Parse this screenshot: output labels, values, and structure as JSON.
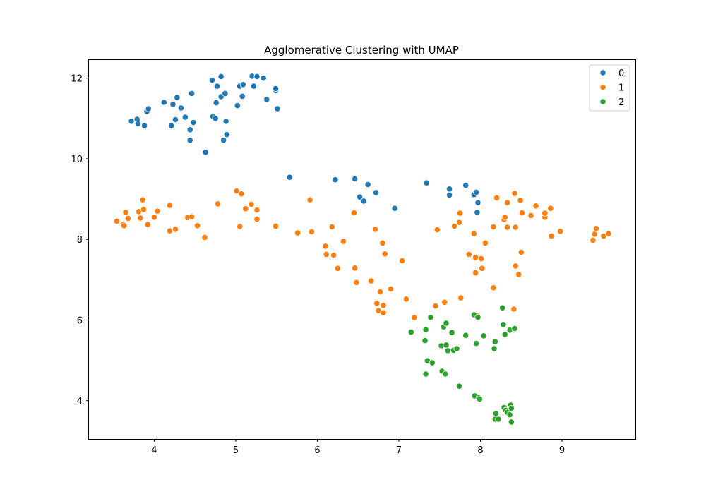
{
  "chart_data": {
    "type": "scatter",
    "title": "Agglomerative Clustering with UMAP",
    "xlabel": "",
    "ylabel": "",
    "xlim": [
      3.2,
      9.9
    ],
    "ylim": [
      3.05,
      12.45
    ],
    "xticks": [
      4,
      5,
      6,
      7,
      8,
      9
    ],
    "yticks": [
      4,
      6,
      8,
      10,
      12
    ],
    "grid": false,
    "legend_position": "top-right",
    "series": [
      {
        "name": "0",
        "color": "#1f77b4",
        "points": [
          [
            3.72,
            10.93
          ],
          [
            3.79,
            10.98
          ],
          [
            3.8,
            10.87
          ],
          [
            3.88,
            10.82
          ],
          [
            3.91,
            11.17
          ],
          [
            3.93,
            11.24
          ],
          [
            4.12,
            11.4
          ],
          [
            4.21,
            10.82
          ],
          [
            4.23,
            11.35
          ],
          [
            4.26,
            10.97
          ],
          [
            4.28,
            11.52
          ],
          [
            4.33,
            11.26
          ],
          [
            4.38,
            11.03
          ],
          [
            4.44,
            10.46
          ],
          [
            4.44,
            10.72
          ],
          [
            4.46,
            11.62
          ],
          [
            4.48,
            10.9
          ],
          [
            4.63,
            10.16
          ],
          [
            4.71,
            11.95
          ],
          [
            4.72,
            11.05
          ],
          [
            4.75,
            11.0
          ],
          [
            4.76,
            11.39
          ],
          [
            4.77,
            11.8
          ],
          [
            4.82,
            11.54
          ],
          [
            4.82,
            12.04
          ],
          [
            4.85,
            10.46
          ],
          [
            4.87,
            11.62
          ],
          [
            4.88,
            10.93
          ],
          [
            4.89,
            10.6
          ],
          [
            5.02,
            11.32
          ],
          [
            5.05,
            11.8
          ],
          [
            5.08,
            11.55
          ],
          [
            5.09,
            11.84
          ],
          [
            5.2,
            12.05
          ],
          [
            5.22,
            11.8
          ],
          [
            5.26,
            12.04
          ],
          [
            5.34,
            12.0
          ],
          [
            5.38,
            11.47
          ],
          [
            5.49,
            11.69
          ],
          [
            5.49,
            11.74
          ],
          [
            5.51,
            11.24
          ],
          [
            5.66,
            9.54
          ],
          [
            6.22,
            9.48
          ],
          [
            6.46,
            9.5
          ],
          [
            6.52,
            9.05
          ],
          [
            6.57,
            8.95
          ],
          [
            6.62,
            9.36
          ],
          [
            6.72,
            9.16
          ],
          [
            6.95,
            8.77
          ],
          [
            7.34,
            9.4
          ],
          [
            7.62,
            9.1
          ],
          [
            7.62,
            9.25
          ],
          [
            7.82,
            9.34
          ],
          [
            7.92,
            9.11
          ],
          [
            7.95,
            9.17
          ],
          [
            7.96,
            8.67
          ],
          [
            7.97,
            8.91
          ]
        ]
      },
      {
        "name": "1",
        "color": "#ff7f0e",
        "points": [
          [
            3.54,
            8.45
          ],
          [
            3.62,
            8.37
          ],
          [
            3.63,
            8.34
          ],
          [
            3.65,
            8.67
          ],
          [
            3.68,
            8.52
          ],
          [
            3.81,
            8.69
          ],
          [
            3.83,
            8.53
          ],
          [
            3.86,
            8.98
          ],
          [
            3.87,
            8.74
          ],
          [
            3.92,
            8.37
          ],
          [
            4.0,
            8.55
          ],
          [
            4.04,
            8.7
          ],
          [
            4.19,
            8.84
          ],
          [
            4.19,
            8.21
          ],
          [
            4.26,
            8.25
          ],
          [
            4.41,
            8.54
          ],
          [
            4.46,
            8.56
          ],
          [
            4.53,
            8.34
          ],
          [
            4.62,
            8.05
          ],
          [
            4.78,
            8.88
          ],
          [
            5.01,
            9.2
          ],
          [
            5.05,
            8.32
          ],
          [
            5.07,
            9.13
          ],
          [
            5.12,
            8.76
          ],
          [
            5.19,
            8.87
          ],
          [
            5.26,
            8.73
          ],
          [
            5.26,
            8.5
          ],
          [
            5.49,
            8.33
          ],
          [
            5.76,
            8.16
          ],
          [
            5.91,
            8.98
          ],
          [
            5.93,
            8.19
          ],
          [
            6.1,
            7.83
          ],
          [
            6.11,
            7.63
          ],
          [
            6.18,
            8.31
          ],
          [
            6.2,
            7.61
          ],
          [
            6.25,
            7.28
          ],
          [
            6.32,
            7.95
          ],
          [
            6.45,
            8.66
          ],
          [
            6.46,
            7.29
          ],
          [
            6.48,
            6.93
          ],
          [
            6.66,
            6.97
          ],
          [
            6.71,
            8.25
          ],
          [
            6.73,
            6.41
          ],
          [
            6.75,
            6.23
          ],
          [
            6.77,
            6.7
          ],
          [
            6.8,
            7.91
          ],
          [
            6.81,
            6.36
          ],
          [
            6.81,
            6.18
          ],
          [
            6.83,
            7.64
          ],
          [
            6.9,
            6.77
          ],
          [
            7.04,
            7.47
          ],
          [
            7.09,
            6.52
          ],
          [
            7.19,
            6.06
          ],
          [
            7.45,
            6.35
          ],
          [
            7.47,
            8.24
          ],
          [
            7.56,
            6.44
          ],
          [
            7.68,
            8.33
          ],
          [
            7.74,
            8.42
          ],
          [
            7.75,
            8.65
          ],
          [
            7.76,
            6.55
          ],
          [
            7.86,
            7.63
          ],
          [
            7.92,
            8.14
          ],
          [
            7.94,
            7.55
          ],
          [
            7.94,
            7.17
          ],
          [
            7.96,
            6.11
          ],
          [
            8.01,
            7.52
          ],
          [
            8.02,
            7.28
          ],
          [
            8.06,
            7.91
          ],
          [
            8.16,
            8.31
          ],
          [
            8.16,
            6.8
          ],
          [
            8.2,
            9.03
          ],
          [
            8.29,
            8.49
          ],
          [
            8.3,
            8.55
          ],
          [
            8.33,
            8.91
          ],
          [
            8.33,
            8.3
          ],
          [
            8.41,
            6.27
          ],
          [
            8.42,
            9.14
          ],
          [
            8.43,
            8.3
          ],
          [
            8.43,
            7.34
          ],
          [
            8.47,
            7.13
          ],
          [
            8.49,
            8.97
          ],
          [
            8.5,
            7.68
          ],
          [
            8.51,
            8.66
          ],
          [
            8.62,
            8.59
          ],
          [
            8.68,
            8.83
          ],
          [
            8.79,
            8.55
          ],
          [
            8.79,
            8.65
          ],
          [
            8.86,
            8.77
          ],
          [
            8.87,
            8.08
          ],
          [
            8.98,
            8.2
          ],
          [
            9.38,
            7.98
          ],
          [
            9.4,
            8.13
          ],
          [
            9.42,
            8.27
          ],
          [
            9.51,
            8.08
          ],
          [
            9.57,
            8.14
          ]
        ]
      },
      {
        "name": "2",
        "color": "#2ca02c",
        "points": [
          [
            7.15,
            5.7
          ],
          [
            7.32,
            5.49
          ],
          [
            7.33,
            5.76
          ],
          [
            7.33,
            4.66
          ],
          [
            7.35,
            4.99
          ],
          [
            7.39,
            6.07
          ],
          [
            7.41,
            4.94
          ],
          [
            7.52,
            5.36
          ],
          [
            7.53,
            4.73
          ],
          [
            7.55,
            5.83
          ],
          [
            7.57,
            4.66
          ],
          [
            7.58,
            5.92
          ],
          [
            7.58,
            5.38
          ],
          [
            7.6,
            5.24
          ],
          [
            7.65,
            5.69
          ],
          [
            7.67,
            5.25
          ],
          [
            7.71,
            5.29
          ],
          [
            7.74,
            4.36
          ],
          [
            7.82,
            5.62
          ],
          [
            7.92,
            6.13
          ],
          [
            7.93,
            4.12
          ],
          [
            7.95,
            5.42
          ],
          [
            7.97,
            6.07
          ],
          [
            7.98,
            4.07
          ],
          [
            7.99,
            4.04
          ],
          [
            8.04,
            5.61
          ],
          [
            8.17,
            5.29
          ],
          [
            8.18,
            5.46
          ],
          [
            8.18,
            3.54
          ],
          [
            8.19,
            3.68
          ],
          [
            8.22,
            3.54
          ],
          [
            8.27,
            6.3
          ],
          [
            8.28,
            5.89
          ],
          [
            8.29,
            3.83
          ],
          [
            8.3,
            5.64
          ],
          [
            8.31,
            3.76
          ],
          [
            8.33,
            3.71
          ],
          [
            8.36,
            3.65
          ],
          [
            8.36,
            5.75
          ],
          [
            8.37,
            3.89
          ],
          [
            8.38,
            3.81
          ],
          [
            8.38,
            3.47
          ],
          [
            8.42,
            5.79
          ]
        ]
      }
    ]
  }
}
